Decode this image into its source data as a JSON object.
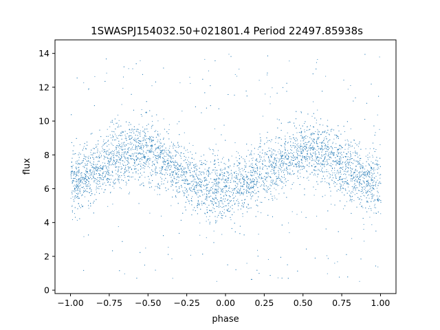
{
  "chart_data": {
    "type": "scatter",
    "title": "1SWASPJ154032.50+021801.4 Period 22497.85938s",
    "xlabel": "phase",
    "ylabel": "flux",
    "xlim": [
      -1.1,
      1.1
    ],
    "ylim": [
      -0.2,
      14.8
    ],
    "x_ticks": [
      -1.0,
      -0.75,
      -0.5,
      -0.25,
      0.0,
      0.25,
      0.5,
      0.75,
      1.0
    ],
    "x_tick_labels": [
      "−1.00",
      "−0.75",
      "−0.50",
      "−0.25",
      "0.00",
      "0.25",
      "0.50",
      "0.75",
      "1.00"
    ],
    "y_ticks": [
      0,
      2,
      4,
      6,
      8,
      10,
      12,
      14
    ],
    "y_tick_labels": [
      "0",
      "2",
      "4",
      "6",
      "8",
      "10",
      "12",
      "14"
    ],
    "grid": false,
    "legend": "none",
    "point_color": "#1f77b4",
    "series": [
      {
        "phase": [
          -1.0,
          -0.9,
          -0.8,
          -0.7,
          -0.6,
          -0.5,
          -0.4,
          -0.3,
          -0.2,
          -0.1,
          0.0,
          0.1,
          0.2,
          0.3,
          0.4,
          0.5,
          0.6,
          0.7,
          0.8,
          0.9,
          1.0
        ],
        "median_flux": [
          6.2,
          6.8,
          7.4,
          7.9,
          8.2,
          8.2,
          7.7,
          7.0,
          6.4,
          6.1,
          6.0,
          6.2,
          6.8,
          7.4,
          7.9,
          8.2,
          8.2,
          7.7,
          7.0,
          6.4,
          6.1
        ],
        "scatter_flux": 0.9,
        "phase_range": [
          -1.0,
          1.0
        ],
        "flux_range": [
          0.5,
          14.0
        ]
      }
    ]
  }
}
